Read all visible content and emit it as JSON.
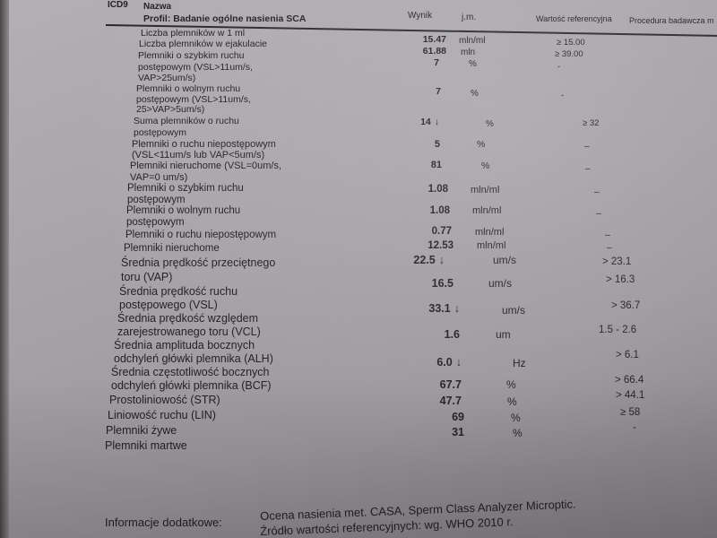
{
  "header": {
    "code_label": "ICD9",
    "name_label": "Nazwa",
    "profile": "Profil: Badanie ogólne nasienia SCA",
    "result_label": "Wynik",
    "unit_label": "j.m.",
    "reference_label": "Wartość referencyjna",
    "procedure_label": "Procedura badawcza m"
  },
  "rows": [
    {
      "name": [
        "Liczba plemników w 1 ml"
      ],
      "value": "15.47",
      "unit": "mln/ml",
      "ref": "≥ 15.00",
      "flag": ""
    },
    {
      "name": [
        "Liczba plemników w ejakulacie"
      ],
      "value": "61.88",
      "unit": "mln",
      "ref": "≥ 39.00",
      "flag": ""
    },
    {
      "name": [
        "Plemniki o szybkim ruchu",
        "postępowym (VSL>11um/s,",
        "VAP>25um/s)"
      ],
      "value": "7",
      "unit": "%",
      "ref": "-",
      "flag": ""
    },
    {
      "name": [
        "Plemniki o wolnym ruchu",
        "postępowym (VSL>11um/s,",
        "25>VAP>5um/s)"
      ],
      "value": "7",
      "unit": "%",
      "ref": "-",
      "flag": ""
    },
    {
      "name": [
        "Suma plemników o ruchu",
        "postępowym"
      ],
      "value": "14",
      "unit": "%",
      "ref": "≥ 32",
      "flag": "↓"
    },
    {
      "name": [
        "Plemniki o ruchu niepostępowym",
        "(VSL<11um/s lub VAP<5um/s)"
      ],
      "value": "5",
      "unit": "%",
      "ref": "–",
      "flag": ""
    },
    {
      "name": [
        "Plemniki nieruchome (VSL=0um/s,",
        "VAP=0 um/s)"
      ],
      "value": "81",
      "unit": "%",
      "ref": "–",
      "flag": ""
    },
    {
      "name": [
        "Plemniki o szybkim ruchu",
        "postępowym"
      ],
      "value": "1.08",
      "unit": "mln/ml",
      "ref": "–",
      "flag": ""
    },
    {
      "name": [
        "Plemniki o wolnym ruchu",
        "postępowym"
      ],
      "value": "1.08",
      "unit": "mln/ml",
      "ref": "–",
      "flag": ""
    },
    {
      "name": [
        "Plemniki o ruchu niepostępowym"
      ],
      "value": "0.77",
      "unit": "mln/ml",
      "ref": "–",
      "flag": ""
    },
    {
      "name": [
        "Plemniki nieruchome"
      ],
      "value": "12.53",
      "unit": "mln/ml",
      "ref": "–",
      "flag": ""
    },
    {
      "name": [
        "Średnia prędkość przeciętnego",
        "toru (VAP)"
      ],
      "value": "22.5",
      "unit": "um/s",
      "ref": "> 23.1",
      "flag": "↓"
    },
    {
      "name": [
        "Średnia prędkość ruchu",
        "postępowego (VSL)"
      ],
      "value": "16.5",
      "unit": "um/s",
      "ref": "> 16.3",
      "flag": ""
    },
    {
      "name": [
        "Średnia prędkość względem",
        "zarejestrowanego toru (VCL)"
      ],
      "value": "33.1",
      "unit": "um/s",
      "ref": "> 36.7",
      "flag": "↓"
    },
    {
      "name": [
        "Średnia amplituda bocznych",
        "odchyleń główki plemnika (ALH)"
      ],
      "value": "1.6",
      "unit": "um",
      "ref": "1.5 - 2.6",
      "flag": ""
    },
    {
      "name": [
        "Średnia częstotliwość bocznych",
        "odchyleń główki plemnika (BCF)"
      ],
      "value": "6.0",
      "unit": "Hz",
      "ref": "> 6.1",
      "flag": "↓"
    },
    {
      "name": [
        "Prostoliniowość (STR)"
      ],
      "value": "67.7",
      "unit": "%",
      "ref": "> 66.4",
      "flag": ""
    },
    {
      "name": [
        "Liniowość ruchu (LIN)"
      ],
      "value": "47.7",
      "unit": "%",
      "ref": "> 44.1",
      "flag": ""
    },
    {
      "name": [
        "Plemniki żywe"
      ],
      "value": "69",
      "unit": "%",
      "ref": "≥ 58",
      "flag": ""
    },
    {
      "name": [
        "Plemniki martwe"
      ],
      "value": "31",
      "unit": "%",
      "ref": "-",
      "flag": ""
    }
  ],
  "footer": {
    "label": "Informacje dodatkowe:",
    "line1": "Ocena nasienia met. CASA, Sperm Class Analyzer Microptic.",
    "line2": "Źródło wartości referencyjnych: wg. WHO 2010 r."
  }
}
